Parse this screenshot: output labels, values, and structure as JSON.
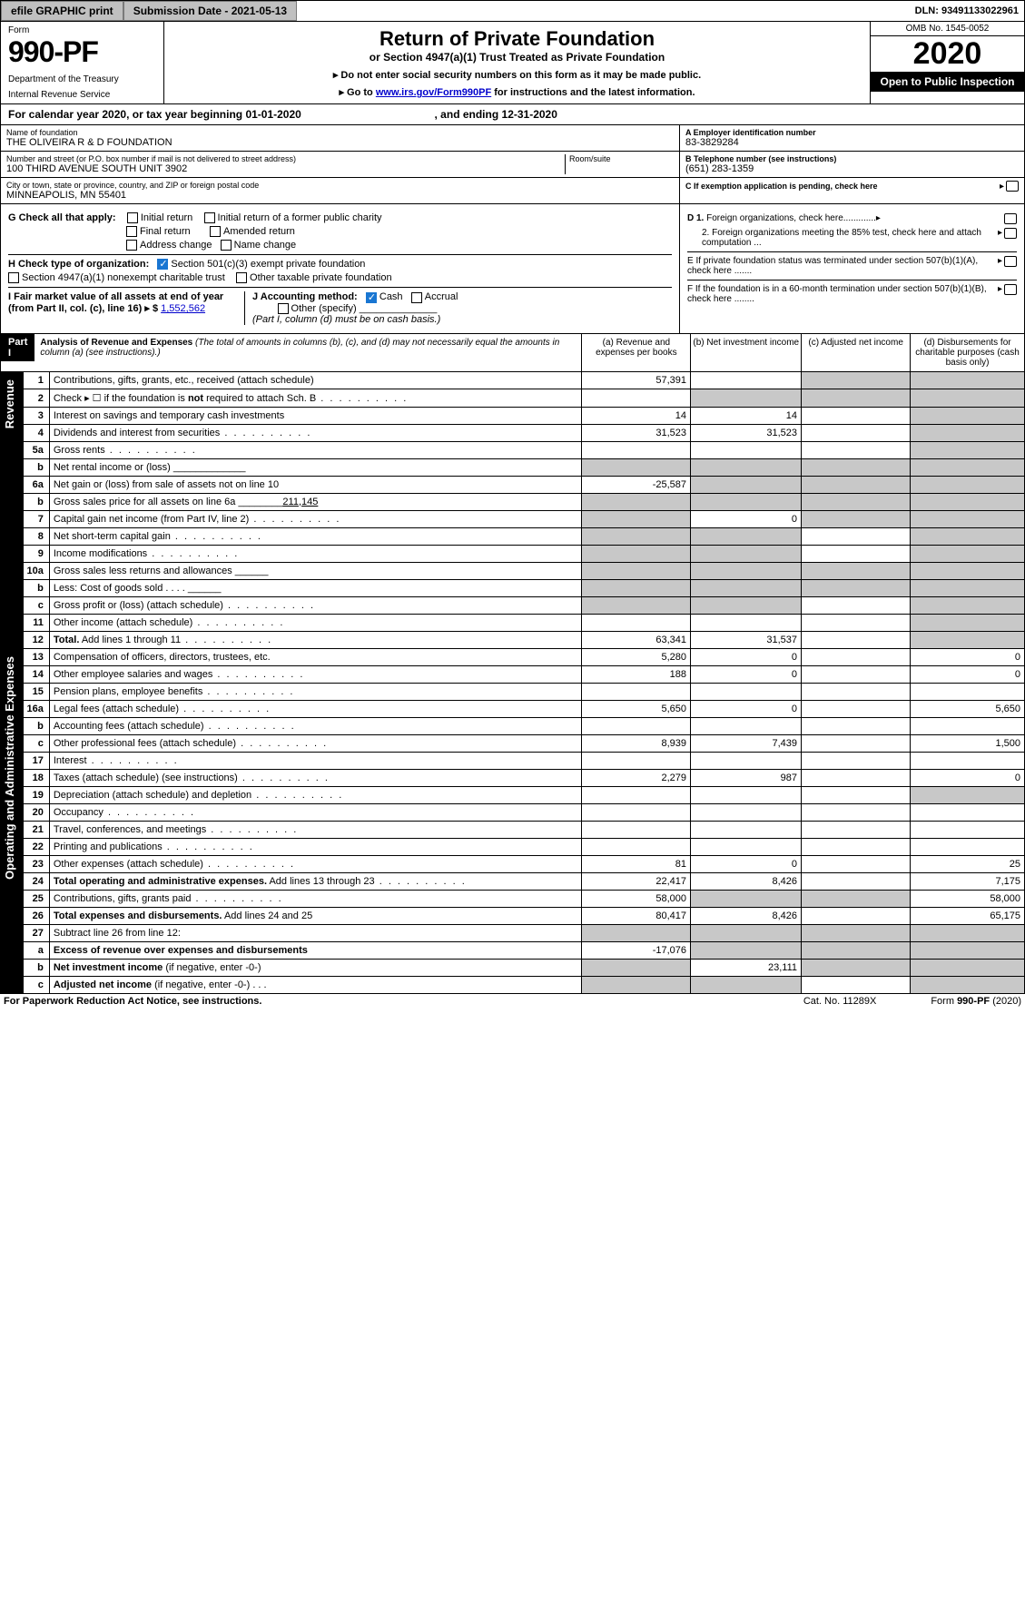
{
  "topbar": {
    "efile": "efile GRAPHIC print",
    "submission": "Submission Date - 2021-05-13",
    "dln": "DLN: 93491133022961"
  },
  "header": {
    "form_word": "Form",
    "form_no": "990-PF",
    "dept1": "Department of the Treasury",
    "dept2": "Internal Revenue Service",
    "title": "Return of Private Foundation",
    "subtitle": "or Section 4947(a)(1) Trust Treated as Private Foundation",
    "note1": "▸ Do not enter social security numbers on this form as it may be made public.",
    "note2_pre": "▸ Go to ",
    "note2_link": "www.irs.gov/Form990PF",
    "note2_post": " for instructions and the latest information.",
    "omb": "OMB No. 1545-0052",
    "year": "2020",
    "open": "Open to Public Inspection"
  },
  "cal": {
    "text_a": "For calendar year 2020, or tax year beginning 01-01-2020",
    "text_b": ", and ending 12-31-2020"
  },
  "id": {
    "name_lbl": "Name of foundation",
    "name": "THE OLIVEIRA R & D FOUNDATION",
    "addr_lbl": "Number and street (or P.O. box number if mail is not delivered to street address)",
    "addr": "100 THIRD AVENUE SOUTH UNIT 3902",
    "room_lbl": "Room/suite",
    "city_lbl": "City or town, state or province, country, and ZIP or foreign postal code",
    "city": "MINNEAPOLIS, MN  55401",
    "ein_lbl": "A Employer identification number",
    "ein": "83-3829284",
    "tel_lbl": "B Telephone number (see instructions)",
    "tel": "(651) 283-1359",
    "c_lbl": "C If exemption application is pending, check here"
  },
  "checks": {
    "g_lbl": "G Check all that apply:",
    "g_initial": "Initial return",
    "g_initial_former": "Initial return of a former public charity",
    "g_final": "Final return",
    "g_amended": "Amended return",
    "g_addr": "Address change",
    "g_name": "Name change",
    "h_lbl": "H Check type of organization:",
    "h_501c3": "Section 501(c)(3) exempt private foundation",
    "h_4947": "Section 4947(a)(1) nonexempt charitable trust",
    "h_other": "Other taxable private foundation",
    "i_lbl": "I Fair market value of all assets at end of year (from Part II, col. (c), line 16) ▸ $",
    "i_val": "1,552,562",
    "j_lbl": "J Accounting method:",
    "j_cash": "Cash",
    "j_accrual": "Accrual",
    "j_other": "Other (specify)",
    "j_note": "(Part I, column (d) must be on cash basis.)",
    "d1": "D 1. Foreign organizations, check here.............",
    "d2": "2. Foreign organizations meeting the 85% test, check here and attach computation ...",
    "e": "E  If private foundation status was terminated under section 507(b)(1)(A), check here .......",
    "f": "F  If the foundation is in a 60-month termination under section 507(b)(1)(B), check here ........"
  },
  "part1": {
    "label": "Part I",
    "title": "Analysis of Revenue and Expenses",
    "note": " (The total of amounts in columns (b), (c), and (d) may not necessarily equal the amounts in column (a) (see instructions).)",
    "col_a": "(a)   Revenue and expenses per books",
    "col_b": "(b)  Net investment income",
    "col_c": "(c)  Adjusted net income",
    "col_d": "(d)  Disbursements for charitable purposes (cash basis only)",
    "section_rev": "Revenue",
    "section_exp": "Operating and Administrative Expenses"
  },
  "rows": [
    {
      "n": "1",
      "lbl": "Contributions, gifts, grants, etc., received (attach schedule)",
      "a": "57,391",
      "b": "",
      "c": "s",
      "d": "s"
    },
    {
      "n": "2",
      "lbl": "Check ▸ ☐ if the foundation is <b>not</b> required to attach Sch. B",
      "a": "",
      "b": "s",
      "c": "s",
      "d": "s",
      "dots": 1
    },
    {
      "n": "3",
      "lbl": "Interest on savings and temporary cash investments",
      "a": "14",
      "b": "14",
      "c": "",
      "d": "s"
    },
    {
      "n": "4",
      "lbl": "Dividends and interest from securities",
      "a": "31,523",
      "b": "31,523",
      "c": "",
      "d": "s",
      "dots": 1
    },
    {
      "n": "5a",
      "lbl": "Gross rents",
      "a": "",
      "b": "",
      "c": "",
      "d": "s",
      "dots": 1
    },
    {
      "n": "b",
      "lbl": "Net rental income or (loss)  _____________",
      "a": "s",
      "b": "s",
      "c": "s",
      "d": "s"
    },
    {
      "n": "6a",
      "lbl": "Net gain or (loss) from sale of assets not on line 10",
      "a": "-25,587",
      "b": "s",
      "c": "s",
      "d": "s"
    },
    {
      "n": "b",
      "lbl": "Gross sales price for all assets on line 6a ________<u>211,145</u>",
      "a": "s",
      "b": "s",
      "c": "s",
      "d": "s"
    },
    {
      "n": "7",
      "lbl": "Capital gain net income (from Part IV, line 2)",
      "a": "s",
      "b": "0",
      "c": "s",
      "d": "s",
      "dots": 1
    },
    {
      "n": "8",
      "lbl": "Net short-term capital gain",
      "a": "s",
      "b": "s",
      "c": "",
      "d": "s",
      "dots": 1
    },
    {
      "n": "9",
      "lbl": "Income modifications",
      "a": "s",
      "b": "s",
      "c": "",
      "d": "s",
      "dots": 1
    },
    {
      "n": "10a",
      "lbl": "Gross sales less returns and allowances  ______",
      "a": "s",
      "b": "s",
      "c": "s",
      "d": "s"
    },
    {
      "n": "b",
      "lbl": "Less: Cost of goods sold   .  .  .  .  ______",
      "a": "s",
      "b": "s",
      "c": "s",
      "d": "s"
    },
    {
      "n": "c",
      "lbl": "Gross profit or (loss) (attach schedule)",
      "a": "s",
      "b": "s",
      "c": "",
      "d": "s",
      "dots": 1
    },
    {
      "n": "11",
      "lbl": "Other income (attach schedule)",
      "a": "",
      "b": "",
      "c": "",
      "d": "s",
      "dots": 1
    },
    {
      "n": "12",
      "lbl": "<b>Total.</b> Add lines 1 through 11",
      "a": "63,341",
      "b": "31,537",
      "c": "",
      "d": "s",
      "dots": 1
    }
  ],
  "exp_rows": [
    {
      "n": "13",
      "lbl": "Compensation of officers, directors, trustees, etc.",
      "a": "5,280",
      "b": "0",
      "c": "",
      "d": "0"
    },
    {
      "n": "14",
      "lbl": "Other employee salaries and wages",
      "a": "188",
      "b": "0",
      "c": "",
      "d": "0",
      "dots": 1
    },
    {
      "n": "15",
      "lbl": "Pension plans, employee benefits",
      "a": "",
      "b": "",
      "c": "",
      "d": "",
      "dots": 1
    },
    {
      "n": "16a",
      "lbl": "Legal fees (attach schedule)",
      "a": "5,650",
      "b": "0",
      "c": "",
      "d": "5,650",
      "dots": 1
    },
    {
      "n": "b",
      "lbl": "Accounting fees (attach schedule)",
      "a": "",
      "b": "",
      "c": "",
      "d": "",
      "dots": 1
    },
    {
      "n": "c",
      "lbl": "Other professional fees (attach schedule)",
      "a": "8,939",
      "b": "7,439",
      "c": "",
      "d": "1,500",
      "dots": 1
    },
    {
      "n": "17",
      "lbl": "Interest",
      "a": "",
      "b": "",
      "c": "",
      "d": "",
      "dots": 1
    },
    {
      "n": "18",
      "lbl": "Taxes (attach schedule) (see instructions)",
      "a": "2,279",
      "b": "987",
      "c": "",
      "d": "0",
      "dots": 1
    },
    {
      "n": "19",
      "lbl": "Depreciation (attach schedule) and depletion",
      "a": "",
      "b": "",
      "c": "",
      "d": "s",
      "dots": 1
    },
    {
      "n": "20",
      "lbl": "Occupancy",
      "a": "",
      "b": "",
      "c": "",
      "d": "",
      "dots": 1
    },
    {
      "n": "21",
      "lbl": "Travel, conferences, and meetings",
      "a": "",
      "b": "",
      "c": "",
      "d": "",
      "dots": 1
    },
    {
      "n": "22",
      "lbl": "Printing and publications",
      "a": "",
      "b": "",
      "c": "",
      "d": "",
      "dots": 1
    },
    {
      "n": "23",
      "lbl": "Other expenses (attach schedule)",
      "a": "81",
      "b": "0",
      "c": "",
      "d": "25",
      "dots": 1
    },
    {
      "n": "24",
      "lbl": "<b>Total operating and administrative expenses.</b> Add lines 13 through 23",
      "a": "22,417",
      "b": "8,426",
      "c": "",
      "d": "7,175",
      "dots": 1
    },
    {
      "n": "25",
      "lbl": "Contributions, gifts, grants paid",
      "a": "58,000",
      "b": "s",
      "c": "s",
      "d": "58,000",
      "dots": 1
    },
    {
      "n": "26",
      "lbl": "<b>Total expenses and disbursements.</b> Add lines 24 and 25",
      "a": "80,417",
      "b": "8,426",
      "c": "",
      "d": "65,175"
    },
    {
      "n": "27",
      "lbl": "Subtract line 26 from line 12:",
      "a": "s",
      "b": "s",
      "c": "s",
      "d": "s"
    },
    {
      "n": "a",
      "lbl": "<b>Excess of revenue over expenses and disbursements</b>",
      "a": "-17,076",
      "b": "s",
      "c": "s",
      "d": "s"
    },
    {
      "n": "b",
      "lbl": "<b>Net investment income</b> (if negative, enter -0-)",
      "a": "s",
      "b": "23,111",
      "c": "s",
      "d": "s"
    },
    {
      "n": "c",
      "lbl": "<b>Adjusted net income</b> (if negative, enter -0-)   .  .  .",
      "a": "s",
      "b": "s",
      "c": "",
      "d": "s"
    }
  ],
  "footer": {
    "f1": "For Paperwork Reduction Act Notice, see instructions.",
    "f2": "Cat. No. 11289X",
    "f3": "Form 990-PF (2020)"
  },
  "colors": {
    "btn_bg": "#c0c0c0",
    "shade": "#c8c8c8",
    "link": "#0000cc",
    "check": "#1976d2"
  }
}
